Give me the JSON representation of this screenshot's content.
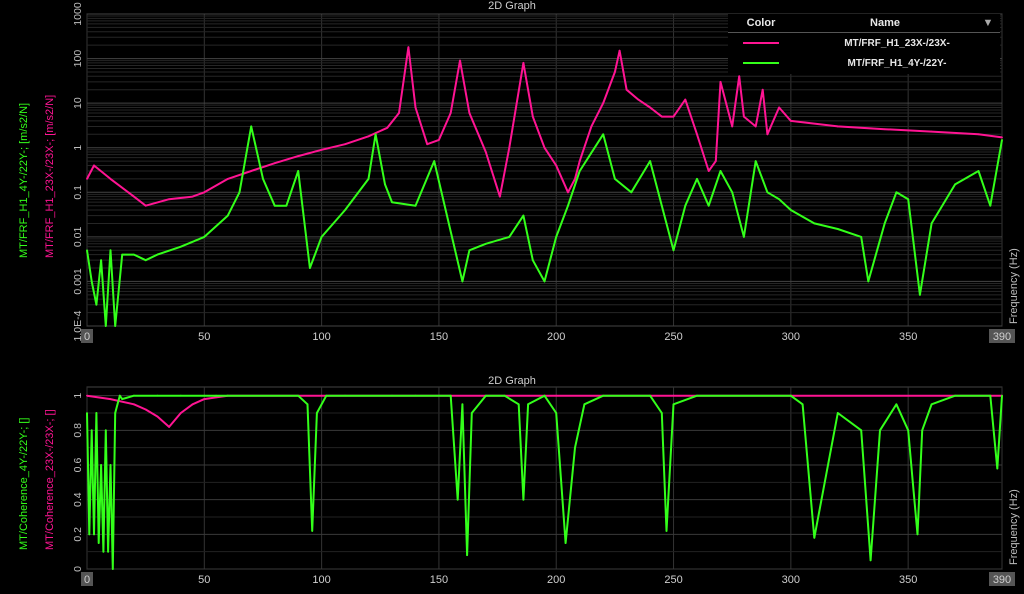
{
  "colors": {
    "frf_23x": "#ff1493",
    "frf_4y": "#33ff1a",
    "background": "#000000",
    "grid": "#3a3a3a"
  },
  "top_graph": {
    "title": "2D Graph",
    "ylabel_green": "MT/FRF_H1_4Y-/22Y-; [m/s2/N]",
    "ylabel_magenta": "MT/FRF_H1_23X-/23X-; [m/s2/N]",
    "xlabel": "Frequency (Hz)",
    "legend": {
      "col_color": "Color",
      "col_name": "Name",
      "sort_icon": "triangle-down-icon",
      "entries": [
        {
          "name": "MT/FRF_H1_23X-/23X-",
          "color": "#ff1493"
        },
        {
          "name": "MT/FRF_H1_4Y-/22Y-",
          "color": "#33ff1a"
        }
      ]
    },
    "y_tick_labels": [
      "1000",
      "100",
      "10",
      "1",
      "0.1",
      "0.01",
      "0.001",
      "1.0E-4"
    ],
    "x_tick_labels": [
      "0",
      "50",
      "100",
      "150",
      "200",
      "250",
      "300",
      "350",
      "390"
    ]
  },
  "bottom_graph": {
    "title": "2D Graph",
    "ylabel_green": "MT/Coherence_4Y-/22Y-; []",
    "ylabel_magenta": "MT/Coherence_23X-/23X-; []",
    "xlabel": "Frequency (Hz)",
    "y_tick_labels": [
      "0",
      "0.2",
      "0.4",
      "0.6",
      "0.8",
      "1"
    ],
    "x_tick_labels": [
      "0",
      "50",
      "100",
      "150",
      "200",
      "250",
      "300",
      "350",
      "390"
    ]
  },
  "chart_data": [
    {
      "type": "line",
      "title": "2D Graph",
      "xlabel": "Frequency (Hz)",
      "ylabel": "MT/FRF_H1_4Y-/22Y-; [m/s2/N]",
      "xlim": [
        0,
        390
      ],
      "ylim": [
        0.0001,
        1000
      ],
      "yscale": "log",
      "grid": true,
      "legend": "top-right",
      "series": [
        {
          "name": "MT/FRF_H1_23X-/23X-",
          "x": [
            0,
            3,
            10,
            20,
            25,
            35,
            45,
            50,
            60,
            70,
            80,
            90,
            100,
            110,
            120,
            128,
            133,
            137,
            140,
            145,
            150,
            155,
            159,
            163,
            170,
            176,
            180,
            186,
            190,
            195,
            200,
            205,
            208,
            210,
            215,
            220,
            225,
            227,
            230,
            235,
            240,
            245,
            250,
            255,
            260,
            265,
            268,
            270,
            275,
            278,
            280,
            285,
            288,
            290,
            295,
            300,
            320,
            340,
            360,
            380,
            390
          ],
          "y": [
            0.2,
            0.4,
            0.2,
            0.08,
            0.05,
            0.07,
            0.08,
            0.1,
            0.2,
            0.3,
            0.45,
            0.65,
            0.9,
            1.2,
            1.8,
            2.8,
            6,
            180,
            8,
            1.2,
            1.5,
            6,
            90,
            6,
            0.8,
            0.08,
            1,
            80,
            5,
            1,
            0.4,
            0.1,
            0.2,
            0.5,
            3,
            10,
            50,
            150,
            20,
            12,
            8,
            5,
            5,
            12,
            2,
            0.3,
            0.5,
            30,
            3,
            40,
            5,
            3,
            20,
            2,
            8,
            4,
            3,
            2.6,
            2.3,
            2,
            1.7
          ]
        },
        {
          "name": "MT/FRF_H1_4Y-/22Y-",
          "x": [
            0,
            2,
            4,
            6,
            8,
            10,
            12,
            15,
            20,
            25,
            30,
            40,
            50,
            60,
            65,
            70,
            75,
            80,
            85,
            90,
            95,
            100,
            110,
            120,
            123,
            127,
            130,
            140,
            148,
            160,
            163,
            170,
            180,
            186,
            190,
            195,
            200,
            205,
            210,
            220,
            225,
            232,
            240,
            245,
            250,
            255,
            260,
            265,
            270,
            275,
            280,
            285,
            290,
            295,
            300,
            310,
            320,
            330,
            333,
            340,
            345,
            350,
            355,
            360,
            370,
            380,
            385,
            390
          ],
          "y": [
            0.005,
            0.001,
            0.0003,
            0.003,
            0.0001,
            0.005,
            0.0001,
            0.004,
            0.004,
            0.003,
            0.004,
            0.006,
            0.01,
            0.03,
            0.1,
            3,
            0.2,
            0.05,
            0.05,
            0.3,
            0.002,
            0.01,
            0.04,
            0.2,
            2,
            0.15,
            0.06,
            0.05,
            0.5,
            0.001,
            0.005,
            0.007,
            0.01,
            0.03,
            0.003,
            0.001,
            0.01,
            0.05,
            0.3,
            2,
            0.2,
            0.1,
            0.5,
            0.05,
            0.005,
            0.05,
            0.2,
            0.05,
            0.3,
            0.1,
            0.01,
            0.5,
            0.1,
            0.07,
            0.04,
            0.02,
            0.015,
            0.01,
            0.001,
            0.02,
            0.1,
            0.07,
            0.0005,
            0.02,
            0.15,
            0.3,
            0.05,
            1.5
          ]
        }
      ]
    },
    {
      "type": "line",
      "title": "2D Graph",
      "xlabel": "Frequency (Hz)",
      "ylabel": "MT/Coherence_4Y-/22Y-; []",
      "xlim": [
        0,
        390
      ],
      "ylim": [
        0,
        1.05
      ],
      "grid": true,
      "series": [
        {
          "name": "MT/Coherence_23X-/23X-",
          "x": [
            0,
            10,
            20,
            25,
            30,
            35,
            40,
            45,
            50,
            55,
            60,
            100,
            200,
            250,
            300,
            390
          ],
          "y": [
            1,
            0.98,
            0.95,
            0.92,
            0.88,
            0.82,
            0.9,
            0.95,
            0.98,
            0.99,
            1,
            1,
            1,
            1,
            1,
            1
          ]
        },
        {
          "name": "MT/Coherence_4Y-/22Y-",
          "x": [
            0,
            1,
            2,
            3,
            4,
            5,
            6,
            7,
            8,
            9,
            10,
            11,
            12,
            13,
            14,
            15,
            20,
            30,
            40,
            50,
            55,
            60,
            90,
            94,
            96,
            98,
            102,
            110,
            130,
            140,
            155,
            158,
            160,
            162,
            164,
            170,
            178,
            184,
            186,
            188,
            195,
            200,
            204,
            208,
            212,
            220,
            240,
            245,
            247,
            250,
            260,
            300,
            305,
            310,
            320,
            330,
            334,
            338,
            345,
            350,
            352,
            354,
            356,
            360,
            370,
            385,
            388,
            390
          ],
          "y": [
            0.9,
            0.2,
            0.8,
            0.2,
            0.9,
            0.15,
            0.6,
            0.1,
            0.8,
            0.1,
            0.6,
            0.0,
            0.9,
            0.95,
            1,
            0.98,
            1,
            1,
            1,
            1,
            1,
            1,
            1,
            0.95,
            0.22,
            0.9,
            1,
            1,
            1,
            1,
            1,
            0.4,
            0.95,
            0.08,
            0.9,
            1,
            1,
            0.95,
            0.4,
            0.95,
            1,
            0.9,
            0.15,
            0.7,
            0.95,
            1,
            1,
            0.9,
            0.22,
            0.95,
            1,
            1,
            0.95,
            0.18,
            0.9,
            0.8,
            0.05,
            0.8,
            0.95,
            0.8,
            0.5,
            0.2,
            0.8,
            0.95,
            1,
            1,
            0.58,
            1
          ]
        }
      ]
    }
  ]
}
